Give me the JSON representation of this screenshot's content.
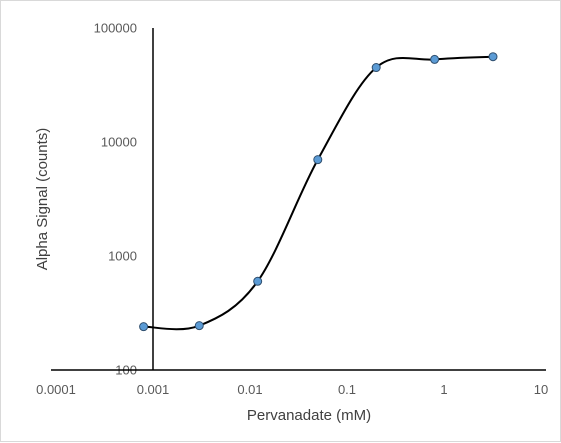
{
  "chart_data": {
    "type": "scatter",
    "title": "",
    "xlabel": "Pervanadate (mM)",
    "ylabel": "Alpha Signal (counts)",
    "x_scale": "log",
    "y_scale": "log",
    "xlim": [
      0.0001,
      10
    ],
    "ylim": [
      100,
      100000
    ],
    "x_ticks": [
      "0.0001",
      "0.001",
      "0.01",
      "0.1",
      "1",
      "10"
    ],
    "y_ticks": [
      "100",
      "1000",
      "10000",
      "100000"
    ],
    "grid": false,
    "legend": "none",
    "series": [
      {
        "marker_color": "#5b9bd5",
        "line_color": "#000000",
        "line_style": "smooth",
        "x": [
          0.0008,
          0.003,
          0.012,
          0.05,
          0.2,
          0.8,
          3.2
        ],
        "y": [
          240,
          245,
          600,
          7000,
          45000,
          53000,
          56000
        ]
      }
    ]
  }
}
